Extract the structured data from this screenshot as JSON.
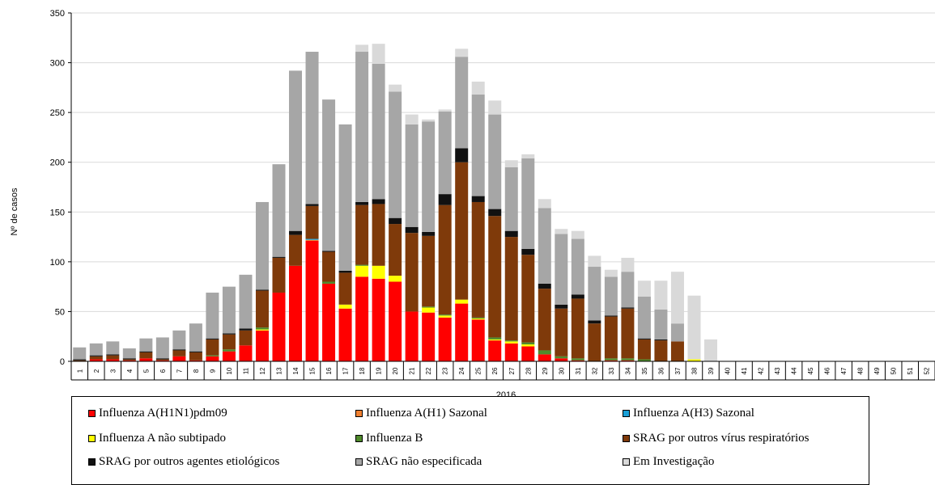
{
  "chart_data": {
    "type": "bar",
    "stacked": true,
    "title": "",
    "xlabel": "2016",
    "ylabel": "Nº de casos",
    "ylim": [
      0,
      350
    ],
    "yticks": [
      0,
      50,
      100,
      150,
      200,
      250,
      300,
      350
    ],
    "grid": true,
    "legend_position": "bottom",
    "categories": [
      "1",
      "2",
      "3",
      "4",
      "5",
      "6",
      "7",
      "8",
      "9",
      "10",
      "11",
      "12",
      "13",
      "14",
      "15",
      "16",
      "17",
      "18",
      "19",
      "20",
      "21",
      "22",
      "23",
      "24",
      "25",
      "26",
      "27",
      "28",
      "29",
      "30",
      "31",
      "32",
      "33",
      "34",
      "35",
      "36",
      "37",
      "38",
      "39",
      "40",
      "41",
      "42",
      "43",
      "44",
      "45",
      "46",
      "47",
      "48",
      "49",
      "50",
      "51",
      "52"
    ],
    "series": [
      {
        "name": "Influenza A(H1N1)pdm09",
        "color": "#ff0000",
        "values": [
          0,
          2,
          2,
          1,
          3,
          1,
          5,
          1,
          5,
          10,
          16,
          31,
          69,
          96,
          121,
          78,
          53,
          85,
          83,
          80,
          50,
          49,
          44,
          58,
          42,
          21,
          18,
          15,
          7,
          3,
          1,
          0,
          1,
          1,
          0,
          0,
          0,
          0,
          0,
          0,
          0,
          0,
          0,
          0,
          0,
          0,
          0,
          0,
          0,
          0,
          0,
          0
        ]
      },
      {
        "name": "Influenza A(H1) Sazonal",
        "color": "#f08030",
        "values": [
          0,
          0,
          0,
          0,
          0,
          0,
          0,
          0,
          0,
          0,
          0,
          0,
          0,
          0,
          1,
          0,
          0,
          0,
          0,
          0,
          0,
          0,
          0,
          0,
          0,
          0,
          0,
          0,
          0,
          0,
          0,
          0,
          0,
          0,
          0,
          0,
          0,
          0,
          0,
          0,
          0,
          0,
          0,
          0,
          0,
          0,
          0,
          0,
          0,
          0,
          0,
          0
        ]
      },
      {
        "name": "Influenza A(H3) Sazonal",
        "color": "#1aa0d8",
        "values": [
          0,
          0,
          0,
          0,
          0,
          0,
          0,
          0,
          0,
          0,
          0,
          0,
          0,
          0,
          1,
          0,
          0,
          0,
          0,
          0,
          0,
          0,
          0,
          0,
          0,
          0,
          0,
          0,
          0,
          0,
          0,
          0,
          0,
          0,
          0,
          0,
          0,
          0,
          0,
          0,
          0,
          0,
          0,
          0,
          0,
          0,
          0,
          0,
          0,
          0,
          0,
          0
        ]
      },
      {
        "name": "Influenza A não subtipado",
        "color": "#ffff00",
        "values": [
          0,
          0,
          0,
          0,
          0,
          0,
          0,
          0,
          0,
          0,
          0,
          1,
          0,
          0,
          0,
          0,
          4,
          11,
          13,
          6,
          0,
          5,
          2,
          4,
          1,
          1,
          2,
          2,
          0,
          0,
          0,
          0,
          0,
          0,
          0,
          0,
          0,
          2,
          0,
          0,
          0,
          0,
          0,
          0,
          0,
          0,
          0,
          0,
          0,
          0,
          0,
          0
        ]
      },
      {
        "name": "Influenza B",
        "color": "#4f8a2b",
        "values": [
          0,
          0,
          0,
          0,
          0,
          0,
          0,
          0,
          1,
          2,
          0,
          2,
          0,
          0,
          0,
          2,
          0,
          1,
          0,
          0,
          0,
          1,
          1,
          0,
          1,
          2,
          1,
          2,
          4,
          2,
          2,
          0,
          2,
          2,
          2,
          0,
          0,
          0,
          0,
          0,
          0,
          0,
          0,
          0,
          0,
          0,
          0,
          0,
          0,
          0,
          0,
          0
        ]
      },
      {
        "name": "SRAG por outros vírus respiratórios",
        "color": "#7f3a0a",
        "values": [
          1,
          3,
          4,
          1,
          6,
          1,
          6,
          8,
          16,
          15,
          15,
          37,
          35,
          31,
          33,
          30,
          32,
          60,
          62,
          52,
          79,
          71,
          110,
          138,
          116,
          122,
          104,
          88,
          62,
          48,
          60,
          38,
          42,
          50,
          20,
          21,
          20,
          0,
          0,
          0,
          0,
          0,
          0,
          0,
          0,
          0,
          0,
          0,
          0,
          0,
          0,
          0
        ]
      },
      {
        "name": "SRAG por outros agentes etiológicos",
        "color": "#111111",
        "values": [
          1,
          1,
          1,
          1,
          1,
          1,
          1,
          1,
          1,
          1,
          2,
          1,
          1,
          4,
          2,
          1,
          2,
          3,
          5,
          6,
          6,
          4,
          11,
          14,
          6,
          7,
          6,
          6,
          5,
          4,
          4,
          3,
          1,
          1,
          1,
          1,
          0,
          0,
          0,
          0,
          0,
          0,
          0,
          0,
          0,
          0,
          0,
          0,
          0,
          0,
          0,
          0
        ]
      },
      {
        "name": "SRAG não especificada",
        "color": "#a6a6a6",
        "values": [
          12,
          12,
          13,
          10,
          13,
          21,
          19,
          28,
          46,
          47,
          54,
          88,
          93,
          161,
          153,
          152,
          147,
          151,
          136,
          127,
          103,
          111,
          83,
          92,
          102,
          95,
          64,
          91,
          76,
          71,
          56,
          54,
          39,
          36,
          42,
          30,
          18,
          0,
          0,
          0,
          0,
          0,
          0,
          0,
          0,
          0,
          0,
          0,
          0,
          0,
          0,
          0
        ]
      },
      {
        "name": "Em Investigação",
        "color": "#d9d9d9",
        "values": [
          0,
          0,
          0,
          0,
          0,
          0,
          0,
          0,
          0,
          0,
          0,
          0,
          0,
          0,
          0,
          0,
          0,
          7,
          20,
          7,
          10,
          2,
          2,
          8,
          13,
          14,
          7,
          4,
          9,
          5,
          8,
          11,
          7,
          14,
          16,
          29,
          52,
          64,
          22,
          0,
          0,
          0,
          0,
          0,
          0,
          0,
          0,
          0,
          0,
          0,
          0,
          0
        ]
      }
    ]
  }
}
